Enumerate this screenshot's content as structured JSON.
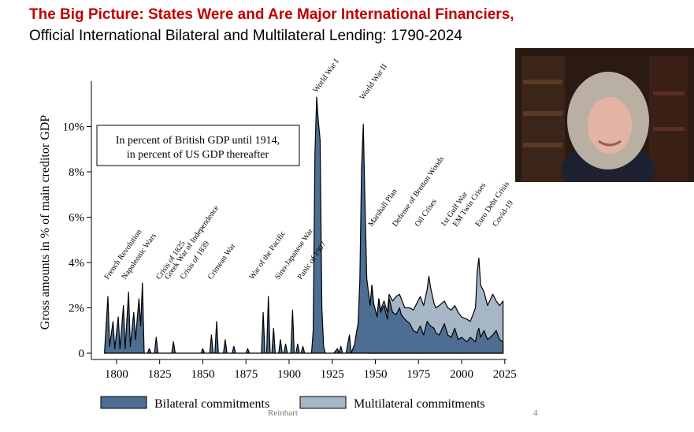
{
  "slide": {
    "title": "The Big Picture: States Were and Are Major International Financiers,",
    "subtitle": "Official International Bilateral and Multilateral Lending: 1790-2024",
    "footer_author": "Reinhart",
    "page_number": "4"
  },
  "chart_data": {
    "type": "area",
    "ylabel": "Gross amounts in % of main creditor GDP",
    "xlim": [
      1790,
      2026
    ],
    "ylim": [
      0,
      12
    ],
    "x_ticks": [
      1800,
      1825,
      1850,
      1875,
      1900,
      1925,
      1950,
      1975,
      2000,
      2025
    ],
    "y_ticks": [
      0,
      2,
      4,
      6,
      8,
      10
    ],
    "y_tick_labels": [
      "0",
      "2%",
      "4%",
      "6%",
      "8%",
      "10%"
    ],
    "note": [
      "In percent of British GDP until 1914,",
      "in percent of US GDP thereafter"
    ],
    "legend": [
      "Bilateral commitments",
      "Multilateral commitments"
    ],
    "colors": {
      "bilateral": "#4d6e92",
      "multilateral": "#a7b6c6",
      "outline": "#000000"
    },
    "annotations": [
      {
        "label": "French Revolution",
        "x": 1795
      },
      {
        "label": "Napoleonic Wars",
        "x": 1805
      },
      {
        "label": "Crisis of 1825",
        "x": 1825
      },
      {
        "label": "Greek War of Independence",
        "x": 1830
      },
      {
        "label": "Crisis of 1839",
        "x": 1839
      },
      {
        "label": "Crimean War",
        "x": 1855
      },
      {
        "label": "War of the Pacific",
        "x": 1879
      },
      {
        "label": "Sino-Japanese War",
        "x": 1894
      },
      {
        "label": "Panic of 1907",
        "x": 1907
      },
      {
        "label": "World War I",
        "x": 1916
      },
      {
        "label": "World War II",
        "x": 1943
      },
      {
        "label": "Marshall Plan",
        "x": 1948
      },
      {
        "label": "Defense of Bretton Woods",
        "x": 1962
      },
      {
        "label": "Oil Crises",
        "x": 1975
      },
      {
        "label": "1st Gulf War",
        "x": 1990
      },
      {
        "label": "EM Twin Crises",
        "x": 1997
      },
      {
        "label": "Euro Debt Crisis",
        "x": 2010
      },
      {
        "label": "Covid-19",
        "x": 2020
      }
    ],
    "series": [
      {
        "name": "Bilateral commitments",
        "points": [
          [
            1793,
            0
          ],
          [
            1795,
            2.5
          ],
          [
            1796,
            0.3
          ],
          [
            1798,
            1.4
          ],
          [
            1799,
            0.2
          ],
          [
            1801,
            1.6
          ],
          [
            1802,
            0.2
          ],
          [
            1804,
            2.1
          ],
          [
            1805,
            0.2
          ],
          [
            1807,
            2.7
          ],
          [
            1808,
            0.3
          ],
          [
            1810,
            1.8
          ],
          [
            1811,
            0.6
          ],
          [
            1813,
            2.4
          ],
          [
            1814,
            1.2
          ],
          [
            1815,
            3.1
          ],
          [
            1816,
            0
          ],
          [
            1818,
            0
          ],
          [
            1819,
            0.2
          ],
          [
            1820,
            0
          ],
          [
            1822,
            0
          ],
          [
            1823,
            0.7
          ],
          [
            1824,
            0
          ],
          [
            1832,
            0
          ],
          [
            1833,
            0.5
          ],
          [
            1834,
            0
          ],
          [
            1849,
            0
          ],
          [
            1850,
            0.2
          ],
          [
            1851,
            0
          ],
          [
            1854,
            0
          ],
          [
            1855,
            0.8
          ],
          [
            1856,
            0
          ],
          [
            1857,
            0
          ],
          [
            1858,
            1.4
          ],
          [
            1859,
            0
          ],
          [
            1862,
            0
          ],
          [
            1863,
            0.6
          ],
          [
            1864,
            0
          ],
          [
            1867,
            0
          ],
          [
            1868,
            0.3
          ],
          [
            1869,
            0
          ],
          [
            1875,
            0
          ],
          [
            1876,
            0.2
          ],
          [
            1877,
            0
          ],
          [
            1884,
            0
          ],
          [
            1885,
            1.8
          ],
          [
            1886,
            0
          ],
          [
            1887,
            0
          ],
          [
            1888,
            2.5
          ],
          [
            1889,
            0
          ],
          [
            1890,
            0
          ],
          [
            1891,
            1.1
          ],
          [
            1892,
            0
          ],
          [
            1894,
            0
          ],
          [
            1895,
            0.6
          ],
          [
            1896,
            0
          ],
          [
            1897,
            0
          ],
          [
            1898,
            0.4
          ],
          [
            1899,
            0
          ],
          [
            1901,
            0
          ],
          [
            1902,
            1.9
          ],
          [
            1903,
            0
          ],
          [
            1904,
            0
          ],
          [
            1905,
            0.4
          ],
          [
            1906,
            0
          ],
          [
            1907,
            0
          ],
          [
            1908,
            0.3
          ],
          [
            1909,
            0
          ],
          [
            1913,
            0
          ],
          [
            1914,
            1.0
          ],
          [
            1915,
            8.8
          ],
          [
            1916,
            11.3
          ],
          [
            1917,
            10.2
          ],
          [
            1918,
            9.4
          ],
          [
            1919,
            2.0
          ],
          [
            1920,
            0.3
          ],
          [
            1921,
            0
          ],
          [
            1926,
            0
          ],
          [
            1928,
            0.2
          ],
          [
            1929,
            0
          ],
          [
            1930,
            0.3
          ],
          [
            1931,
            0
          ],
          [
            1933,
            0
          ],
          [
            1935,
            0.8
          ],
          [
            1936,
            0
          ],
          [
            1938,
            0.4
          ],
          [
            1939,
            0.9
          ],
          [
            1940,
            1.3
          ],
          [
            1941,
            3.2
          ],
          [
            1942,
            8.2
          ],
          [
            1943,
            10.1
          ],
          [
            1944,
            6.5
          ],
          [
            1945,
            3.3
          ],
          [
            1946,
            2.7
          ],
          [
            1947,
            2.1
          ],
          [
            1948,
            3.0
          ],
          [
            1949,
            2.2
          ],
          [
            1950,
            1.9
          ],
          [
            1951,
            1.6
          ],
          [
            1952,
            2.4
          ],
          [
            1953,
            1.8
          ],
          [
            1955,
            2.1
          ],
          [
            1957,
            1.5
          ],
          [
            1958,
            2.4
          ],
          [
            1960,
            1.8
          ],
          [
            1962,
            1.7
          ],
          [
            1964,
            2.0
          ],
          [
            1965,
            1.7
          ],
          [
            1967,
            1.5
          ],
          [
            1970,
            1.3
          ],
          [
            1972,
            1.0
          ],
          [
            1974,
            0.9
          ],
          [
            1976,
            1.2
          ],
          [
            1978,
            0.8
          ],
          [
            1980,
            1.4
          ],
          [
            1982,
            1.2
          ],
          [
            1984,
            1.1
          ],
          [
            1985,
            0.9
          ],
          [
            1987,
            0.8
          ],
          [
            1990,
            1.3
          ],
          [
            1992,
            0.8
          ],
          [
            1994,
            0.7
          ],
          [
            1996,
            1.1
          ],
          [
            1998,
            0.6
          ],
          [
            2000,
            0.7
          ],
          [
            2003,
            0.5
          ],
          [
            2005,
            0.7
          ],
          [
            2008,
            0.5
          ],
          [
            2009,
            0.9
          ],
          [
            2010,
            1.1
          ],
          [
            2011,
            0.7
          ],
          [
            2013,
            1.0
          ],
          [
            2015,
            0.6
          ],
          [
            2018,
            0.8
          ],
          [
            2020,
            1.0
          ],
          [
            2022,
            0.6
          ],
          [
            2024,
            0.5
          ]
        ]
      },
      {
        "name": "Multilateral commitments",
        "points": [
          [
            1946,
            2.7
          ],
          [
            1947,
            2.1
          ],
          [
            1948,
            3.0
          ],
          [
            1949,
            2.2
          ],
          [
            1950,
            1.9
          ],
          [
            1951,
            1.6
          ],
          [
            1952,
            2.4
          ],
          [
            1953,
            1.9
          ],
          [
            1955,
            2.3
          ],
          [
            1957,
            1.8
          ],
          [
            1958,
            2.6
          ],
          [
            1960,
            2.3
          ],
          [
            1962,
            2.5
          ],
          [
            1964,
            2.6
          ],
          [
            1965,
            2.4
          ],
          [
            1967,
            2.0
          ],
          [
            1970,
            2.0
          ],
          [
            1972,
            1.9
          ],
          [
            1974,
            2.2
          ],
          [
            1976,
            2.5
          ],
          [
            1978,
            2.1
          ],
          [
            1980,
            2.8
          ],
          [
            1981,
            3.4
          ],
          [
            1982,
            2.9
          ],
          [
            1984,
            2.2
          ],
          [
            1985,
            2.0
          ],
          [
            1987,
            2.1
          ],
          [
            1990,
            2.3
          ],
          [
            1992,
            2.0
          ],
          [
            1994,
            1.9
          ],
          [
            1996,
            2.1
          ],
          [
            1998,
            1.8
          ],
          [
            2000,
            1.6
          ],
          [
            2003,
            1.5
          ],
          [
            2005,
            1.4
          ],
          [
            2008,
            2.0
          ],
          [
            2009,
            3.6
          ],
          [
            2010,
            4.2
          ],
          [
            2011,
            3.0
          ],
          [
            2013,
            2.7
          ],
          [
            2015,
            2.1
          ],
          [
            2018,
            2.6
          ],
          [
            2020,
            2.3
          ],
          [
            2022,
            2.1
          ],
          [
            2024,
            2.3
          ]
        ]
      }
    ]
  }
}
